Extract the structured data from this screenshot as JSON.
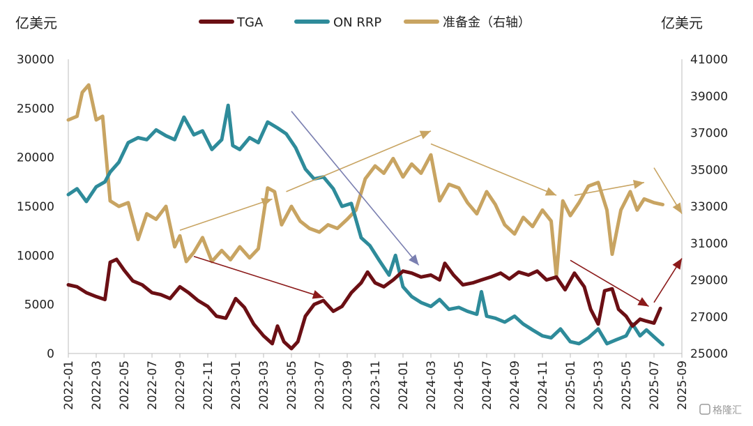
{
  "chart_data": {
    "type": "line",
    "left_unit": "亿美元",
    "right_unit": "亿美元",
    "left_axis": {
      "min": 0,
      "max": 30000,
      "ticks": [
        "0",
        "5000",
        "10000",
        "15000",
        "20000",
        "25000",
        "30000"
      ]
    },
    "right_axis": {
      "min": 25000,
      "max": 41000,
      "ticks": [
        "25000",
        "27000",
        "29000",
        "31000",
        "33000",
        "35000",
        "37000",
        "39000",
        "41000"
      ]
    },
    "x_axis": {
      "min": "2022-01",
      "max": "2025-09",
      "ticks": [
        "2022-01",
        "2022-03",
        "2022-05",
        "2022-07",
        "2022-09",
        "2022-11",
        "2023-01",
        "2023-03",
        "2023-05",
        "2023-07",
        "2023-09",
        "2023-11",
        "2024-01",
        "2024-03",
        "2024-05",
        "2024-07",
        "2024-09",
        "2024-11",
        "2025-01",
        "2025-03",
        "2025-05",
        "2025-07",
        "2025-09"
      ]
    },
    "legend_position": "top",
    "grid": false,
    "series": [
      {
        "name": "TGA",
        "axis": "left",
        "color": "#6b0f14",
        "points": [
          [
            "2022-01-01",
            7000
          ],
          [
            "2022-01-20",
            6800
          ],
          [
            "2022-02-10",
            6200
          ],
          [
            "2022-03-01",
            5800
          ],
          [
            "2022-03-20",
            5500
          ],
          [
            "2022-04-01",
            9300
          ],
          [
            "2022-04-15",
            9600
          ],
          [
            "2022-05-01",
            8500
          ],
          [
            "2022-05-20",
            7400
          ],
          [
            "2022-06-10",
            7000
          ],
          [
            "2022-07-01",
            6200
          ],
          [
            "2022-07-20",
            6000
          ],
          [
            "2022-08-10",
            5600
          ],
          [
            "2022-09-01",
            6800
          ],
          [
            "2022-09-20",
            6200
          ],
          [
            "2022-10-10",
            5400
          ],
          [
            "2022-11-01",
            4800
          ],
          [
            "2022-11-20",
            3800
          ],
          [
            "2022-12-10",
            3600
          ],
          [
            "2022-12-20",
            4500
          ],
          [
            "2023-01-01",
            5600
          ],
          [
            "2023-01-20",
            4700
          ],
          [
            "2023-02-10",
            3000
          ],
          [
            "2023-03-01",
            1800
          ],
          [
            "2023-03-20",
            1000
          ],
          [
            "2023-04-01",
            2800
          ],
          [
            "2023-04-15",
            1200
          ],
          [
            "2023-05-01",
            500
          ],
          [
            "2023-05-15",
            1200
          ],
          [
            "2023-06-01",
            3800
          ],
          [
            "2023-06-20",
            5000
          ],
          [
            "2023-07-10",
            5400
          ],
          [
            "2023-08-01",
            4300
          ],
          [
            "2023-08-20",
            4800
          ],
          [
            "2023-09-10",
            6200
          ],
          [
            "2023-10-01",
            7200
          ],
          [
            "2023-10-15",
            8300
          ],
          [
            "2023-11-01",
            7200
          ],
          [
            "2023-11-20",
            6800
          ],
          [
            "2023-12-10",
            7500
          ],
          [
            "2024-01-01",
            8400
          ],
          [
            "2024-01-20",
            8200
          ],
          [
            "2024-02-10",
            7800
          ],
          [
            "2024-03-01",
            8000
          ],
          [
            "2024-03-20",
            7500
          ],
          [
            "2024-04-01",
            9200
          ],
          [
            "2024-04-20",
            8000
          ],
          [
            "2024-05-10",
            7000
          ],
          [
            "2024-06-01",
            7200
          ],
          [
            "2024-06-20",
            7500
          ],
          [
            "2024-07-10",
            7800
          ],
          [
            "2024-08-01",
            8200
          ],
          [
            "2024-08-20",
            7600
          ],
          [
            "2024-09-10",
            8300
          ],
          [
            "2024-10-01",
            8000
          ],
          [
            "2024-10-20",
            8400
          ],
          [
            "2024-11-10",
            7500
          ],
          [
            "2024-12-01",
            7800
          ],
          [
            "2024-12-20",
            6500
          ],
          [
            "2025-01-10",
            8200
          ],
          [
            "2025-02-01",
            6800
          ],
          [
            "2025-02-15",
            4500
          ],
          [
            "2025-03-01",
            3000
          ],
          [
            "2025-03-15",
            6400
          ],
          [
            "2025-04-01",
            6600
          ],
          [
            "2025-04-15",
            4500
          ],
          [
            "2025-05-01",
            3800
          ],
          [
            "2025-05-15",
            2800
          ],
          [
            "2025-06-01",
            3500
          ],
          [
            "2025-06-15",
            3300
          ],
          [
            "2025-07-01",
            3100
          ],
          [
            "2025-07-15",
            4600
          ]
        ]
      },
      {
        "name": "ON RRP",
        "axis": "left",
        "color": "#2e8b9a",
        "points": [
          [
            "2022-01-01",
            16200
          ],
          [
            "2022-01-20",
            16800
          ],
          [
            "2022-02-10",
            15500
          ],
          [
            "2022-03-01",
            17000
          ],
          [
            "2022-03-20",
            17500
          ],
          [
            "2022-04-01",
            18500
          ],
          [
            "2022-04-20",
            19500
          ],
          [
            "2022-05-10",
            21500
          ],
          [
            "2022-06-01",
            22000
          ],
          [
            "2022-06-20",
            21800
          ],
          [
            "2022-07-10",
            22800
          ],
          [
            "2022-08-01",
            22200
          ],
          [
            "2022-08-20",
            21800
          ],
          [
            "2022-09-10",
            24100
          ],
          [
            "2022-10-01",
            22300
          ],
          [
            "2022-10-20",
            22700
          ],
          [
            "2022-11-10",
            20800
          ],
          [
            "2022-12-01",
            21800
          ],
          [
            "2022-12-15",
            25300
          ],
          [
            "2022-12-25",
            21200
          ],
          [
            "2023-01-10",
            20800
          ],
          [
            "2023-02-01",
            22000
          ],
          [
            "2023-02-20",
            21500
          ],
          [
            "2023-03-10",
            23600
          ],
          [
            "2023-04-01",
            23000
          ],
          [
            "2023-04-20",
            22400
          ],
          [
            "2023-05-10",
            21000
          ],
          [
            "2023-06-01",
            18800
          ],
          [
            "2023-06-20",
            17800
          ],
          [
            "2023-07-10",
            18000
          ],
          [
            "2023-08-01",
            16800
          ],
          [
            "2023-08-20",
            15000
          ],
          [
            "2023-09-10",
            15300
          ],
          [
            "2023-10-01",
            11800
          ],
          [
            "2023-10-20",
            11000
          ],
          [
            "2023-11-10",
            9500
          ],
          [
            "2023-12-01",
            8000
          ],
          [
            "2023-12-15",
            10000
          ],
          [
            "2024-01-01",
            6800
          ],
          [
            "2024-01-20",
            5800
          ],
          [
            "2024-02-10",
            5200
          ],
          [
            "2024-03-01",
            4800
          ],
          [
            "2024-03-20",
            5500
          ],
          [
            "2024-04-10",
            4500
          ],
          [
            "2024-05-01",
            4700
          ],
          [
            "2024-05-20",
            4300
          ],
          [
            "2024-06-10",
            4000
          ],
          [
            "2024-06-20",
            6300
          ],
          [
            "2024-07-01",
            3800
          ],
          [
            "2024-07-20",
            3600
          ],
          [
            "2024-08-10",
            3200
          ],
          [
            "2024-09-01",
            3800
          ],
          [
            "2024-09-20",
            3000
          ],
          [
            "2024-10-10",
            2400
          ],
          [
            "2024-11-01",
            1800
          ],
          [
            "2024-11-20",
            1600
          ],
          [
            "2024-12-10",
            2500
          ],
          [
            "2025-01-01",
            1200
          ],
          [
            "2025-01-20",
            1000
          ],
          [
            "2025-02-10",
            1600
          ],
          [
            "2025-03-01",
            2500
          ],
          [
            "2025-03-20",
            1000
          ],
          [
            "2025-04-10",
            1400
          ],
          [
            "2025-05-01",
            1800
          ],
          [
            "2025-05-15",
            3000
          ],
          [
            "2025-06-01",
            1800
          ],
          [
            "2025-06-15",
            2400
          ],
          [
            "2025-07-01",
            1700
          ],
          [
            "2025-07-20",
            900
          ]
        ]
      },
      {
        "name": "准备金（右轴）",
        "axis": "right",
        "color": "#c8a462",
        "points": [
          [
            "2022-01-01",
            37700
          ],
          [
            "2022-01-20",
            37900
          ],
          [
            "2022-02-01",
            39200
          ],
          [
            "2022-02-15",
            39600
          ],
          [
            "2022-03-01",
            37700
          ],
          [
            "2022-03-15",
            37900
          ],
          [
            "2022-04-01",
            33300
          ],
          [
            "2022-04-20",
            33000
          ],
          [
            "2022-05-10",
            33200
          ],
          [
            "2022-06-01",
            31200
          ],
          [
            "2022-06-20",
            32600
          ],
          [
            "2022-07-10",
            32300
          ],
          [
            "2022-08-01",
            33000
          ],
          [
            "2022-08-20",
            30800
          ],
          [
            "2022-09-01",
            31400
          ],
          [
            "2022-09-15",
            30000
          ],
          [
            "2022-10-01",
            30500
          ],
          [
            "2022-10-20",
            31300
          ],
          [
            "2022-11-10",
            30000
          ],
          [
            "2022-12-01",
            30600
          ],
          [
            "2022-12-20",
            30100
          ],
          [
            "2023-01-10",
            30800
          ],
          [
            "2023-02-01",
            30200
          ],
          [
            "2023-02-20",
            30700
          ],
          [
            "2023-03-10",
            34000
          ],
          [
            "2023-03-25",
            33800
          ],
          [
            "2023-04-10",
            32000
          ],
          [
            "2023-05-01",
            33000
          ],
          [
            "2023-05-20",
            32200
          ],
          [
            "2023-06-10",
            31800
          ],
          [
            "2023-07-01",
            31600
          ],
          [
            "2023-07-20",
            32000
          ],
          [
            "2023-08-10",
            31800
          ],
          [
            "2023-09-01",
            32300
          ],
          [
            "2023-09-20",
            32800
          ],
          [
            "2023-10-10",
            34500
          ],
          [
            "2023-11-01",
            35200
          ],
          [
            "2023-11-20",
            34800
          ],
          [
            "2023-12-10",
            35600
          ],
          [
            "2024-01-01",
            34600
          ],
          [
            "2024-01-20",
            35300
          ],
          [
            "2024-02-10",
            34800
          ],
          [
            "2024-03-01",
            35800
          ],
          [
            "2024-03-20",
            33300
          ],
          [
            "2024-04-10",
            34200
          ],
          [
            "2024-05-01",
            34000
          ],
          [
            "2024-05-20",
            33200
          ],
          [
            "2024-06-10",
            32600
          ],
          [
            "2024-07-01",
            33800
          ],
          [
            "2024-07-20",
            33100
          ],
          [
            "2024-08-10",
            32000
          ],
          [
            "2024-09-01",
            31500
          ],
          [
            "2024-09-20",
            32400
          ],
          [
            "2024-10-10",
            31900
          ],
          [
            "2024-11-01",
            32800
          ],
          [
            "2024-11-20",
            32200
          ],
          [
            "2024-12-01",
            29200
          ],
          [
            "2024-12-15",
            33300
          ],
          [
            "2025-01-01",
            32500
          ],
          [
            "2025-01-20",
            33200
          ],
          [
            "2025-02-10",
            34100
          ],
          [
            "2025-03-01",
            34300
          ],
          [
            "2025-03-20",
            32800
          ],
          [
            "2025-04-01",
            30400
          ],
          [
            "2025-04-20",
            32800
          ],
          [
            "2025-05-10",
            33800
          ],
          [
            "2025-05-25",
            32800
          ],
          [
            "2025-06-10",
            33400
          ],
          [
            "2025-07-01",
            33200
          ],
          [
            "2025-07-20",
            33100
          ]
        ]
      }
    ],
    "annotations": [
      {
        "type": "arrow",
        "color": "#c8a462",
        "axis": "right",
        "from": [
          "2022-09-01",
          31700
        ],
        "to": [
          "2023-03-20",
          33400
        ]
      },
      {
        "type": "arrow",
        "color": "#c8a462",
        "axis": "right",
        "from": [
          "2023-04-20",
          33800
        ],
        "to": [
          "2024-03-01",
          37100
        ]
      },
      {
        "type": "arrow",
        "color": "#c8a462",
        "axis": "right",
        "from": [
          "2024-03-01",
          36400
        ],
        "to": [
          "2024-12-01",
          33600
        ]
      },
      {
        "type": "arrow",
        "color": "#c8a462",
        "axis": "right",
        "from": [
          "2025-01-10",
          33600
        ],
        "to": [
          "2025-06-10",
          34300
        ]
      },
      {
        "type": "arrow",
        "color": "#c8a462",
        "axis": "right",
        "from": [
          "2025-07-01",
          35100
        ],
        "to": [
          "2025-09-01",
          32600
        ]
      },
      {
        "type": "arrow",
        "color": "#7a7fb0",
        "axis": "left",
        "from": [
          "2023-05-01",
          24700
        ],
        "to": [
          "2024-02-05",
          9000
        ]
      },
      {
        "type": "arrow",
        "color": "#8b1a1a",
        "axis": "left",
        "from": [
          "2022-10-01",
          9900
        ],
        "to": [
          "2023-07-10",
          5700
        ]
      },
      {
        "type": "arrow",
        "color": "#8b1a1a",
        "axis": "left",
        "from": [
          "2025-01-01",
          9500
        ],
        "to": [
          "2025-06-20",
          4800
        ]
      },
      {
        "type": "arrow",
        "color": "#8b1a1a",
        "axis": "left",
        "from": [
          "2025-07-01",
          5200
        ],
        "to": [
          "2025-09-01",
          9700
        ]
      }
    ]
  },
  "watermark": "格隆汇"
}
